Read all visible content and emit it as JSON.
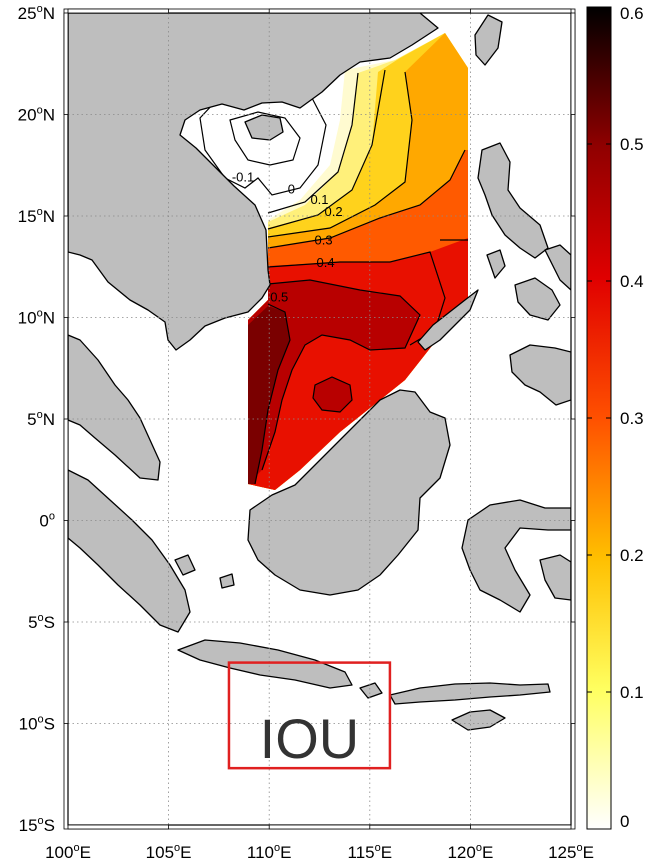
{
  "map": {
    "lon_ticks": [
      {
        "value": 100,
        "deg": "100",
        "hemi": "E"
      },
      {
        "value": 105,
        "deg": "105",
        "hemi": "E"
      },
      {
        "value": 110,
        "deg": "110",
        "hemi": "E"
      },
      {
        "value": 115,
        "deg": "115",
        "hemi": "E"
      },
      {
        "value": 120,
        "deg": "120",
        "hemi": "E"
      },
      {
        "value": 125,
        "deg": "125",
        "hemi": "E"
      }
    ],
    "lat_ticks": [
      {
        "value": 25,
        "deg": "25",
        "hemi": "N"
      },
      {
        "value": 20,
        "deg": "20",
        "hemi": "N"
      },
      {
        "value": 15,
        "deg": "15",
        "hemi": "N"
      },
      {
        "value": 10,
        "deg": "10",
        "hemi": "N"
      },
      {
        "value": 5,
        "deg": "5",
        "hemi": "N"
      },
      {
        "value": 0,
        "deg": "0",
        "hemi": ""
      },
      {
        "value": -5,
        "deg": "5",
        "hemi": "S"
      },
      {
        "value": -10,
        "deg": "10",
        "hemi": "S"
      },
      {
        "value": -15,
        "deg": "15",
        "hemi": "S"
      }
    ],
    "lon_range": [
      100,
      125
    ],
    "lat_range": [
      -15,
      25
    ],
    "grid": true,
    "contour_labels": [
      {
        "text": "-0.1",
        "lon": 108.7,
        "lat": 16.7
      },
      {
        "text": "0",
        "lon": 111.1,
        "lat": 16.1
      },
      {
        "text": "0.1",
        "lon": 112.5,
        "lat": 15.6
      },
      {
        "text": "0.2",
        "lon": 113.2,
        "lat": 15.0
      },
      {
        "text": "0.3",
        "lon": 112.7,
        "lat": 13.6
      },
      {
        "text": "0.4",
        "lon": 112.8,
        "lat": 12.5
      },
      {
        "text": "0.5",
        "lon": 110.5,
        "lat": 10.8
      }
    ],
    "box": {
      "label": "IOU",
      "lon_range": [
        108,
        116
      ],
      "lat_range": [
        -12.2,
        -7.0
      ],
      "color": "#e02020"
    },
    "land_color": "#bebebe",
    "ocean_color": "#ffffff"
  },
  "colorbar": {
    "ticks": [
      "0",
      "0.1",
      "0.2",
      "0.3",
      "0.4",
      "0.5",
      "0.6"
    ],
    "range": [
      0,
      0.6
    ],
    "colormap": "hot-reversed"
  }
}
